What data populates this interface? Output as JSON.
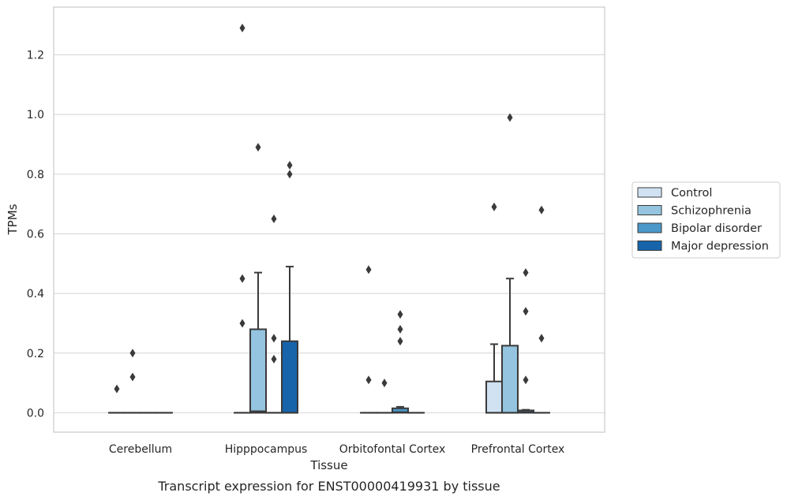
{
  "caption": "Transcript expression for ENST00000419931 by tissue",
  "chart_data": {
    "type": "boxplot",
    "title": "",
    "xlabel": "Tissue",
    "ylabel": "TPMs",
    "ylim": [
      -0.065,
      1.36
    ],
    "yticks": [
      0.0,
      0.2,
      0.4,
      0.6,
      0.8,
      1.0,
      1.2
    ],
    "ytick_labels": [
      "0.0",
      "0.2",
      "0.4",
      "0.6",
      "0.8",
      "1.0",
      "1.2"
    ],
    "grid": "horizontal",
    "legend_position": "right",
    "categories": [
      "Cerebellum",
      "Hipppocampus",
      "Orbitofontal Cortex",
      "Prefrontal Cortex"
    ],
    "series": [
      {
        "name": "Control",
        "color": "#d0e1f2",
        "boxes": [
          {
            "q1": 0,
            "median": 0,
            "q3": 0,
            "whisker_low": 0,
            "whisker_high": 0,
            "outliers": [
              0.08
            ]
          },
          {
            "q1": 0,
            "median": 0,
            "q3": 0,
            "whisker_low": 0,
            "whisker_high": 0,
            "outliers": [
              1.29,
              0.45,
              0.3
            ]
          },
          {
            "q1": 0,
            "median": 0,
            "q3": 0,
            "whisker_low": 0,
            "whisker_high": 0,
            "outliers": [
              0.48,
              0.11
            ]
          },
          {
            "q1": 0,
            "median": 0,
            "q3": 0.105,
            "whisker_low": 0,
            "whisker_high": 0.23,
            "outliers": [
              0.69
            ]
          }
        ]
      },
      {
        "name": "Schizophrenia",
        "color": "#94c4df",
        "boxes": [
          {
            "q1": 0,
            "median": 0,
            "q3": 0,
            "whisker_low": 0,
            "whisker_high": 0,
            "outliers": [
              0.2,
              0.12
            ]
          },
          {
            "q1": 0,
            "median": 0.005,
            "q3": 0.28,
            "whisker_low": 0,
            "whisker_high": 0.47,
            "outliers": [
              0.89
            ]
          },
          {
            "q1": 0,
            "median": 0,
            "q3": 0,
            "whisker_low": 0,
            "whisker_high": 0,
            "outliers": [
              0.1
            ]
          },
          {
            "q1": 0,
            "median": 0,
            "q3": 0.225,
            "whisker_low": 0,
            "whisker_high": 0.45,
            "outliers": [
              0.99
            ]
          }
        ]
      },
      {
        "name": "Bipolar disorder",
        "color": "#4a98c9",
        "boxes": [
          {
            "q1": 0,
            "median": 0,
            "q3": 0,
            "whisker_low": 0,
            "whisker_high": 0,
            "outliers": []
          },
          {
            "q1": 0,
            "median": 0,
            "q3": 0,
            "whisker_low": 0,
            "whisker_high": 0,
            "outliers": [
              0.65,
              0.25,
              0.18
            ]
          },
          {
            "q1": 0,
            "median": 0.002,
            "q3": 0.015,
            "whisker_low": 0,
            "whisker_high": 0.02,
            "outliers": [
              0.33,
              0.28,
              0.24
            ]
          },
          {
            "q1": 0,
            "median": 0.002,
            "q3": 0.008,
            "whisker_low": 0,
            "whisker_high": 0.01,
            "outliers": [
              0.47,
              0.34,
              0.11
            ]
          }
        ]
      },
      {
        "name": "Major depression",
        "color": "#1764ab",
        "boxes": [
          {
            "q1": 0,
            "median": 0,
            "q3": 0,
            "whisker_low": 0,
            "whisker_high": 0,
            "outliers": []
          },
          {
            "q1": 0,
            "median": 0,
            "q3": 0.24,
            "whisker_low": 0,
            "whisker_high": 0.49,
            "outliers": [
              0.83,
              0.8
            ]
          },
          {
            "q1": 0,
            "median": 0,
            "q3": 0,
            "whisker_low": 0,
            "whisker_high": 0,
            "outliers": []
          },
          {
            "q1": 0,
            "median": 0,
            "q3": 0,
            "whisker_low": 0,
            "whisker_high": 0,
            "outliers": [
              0.68,
              0.25
            ]
          }
        ]
      }
    ]
  }
}
